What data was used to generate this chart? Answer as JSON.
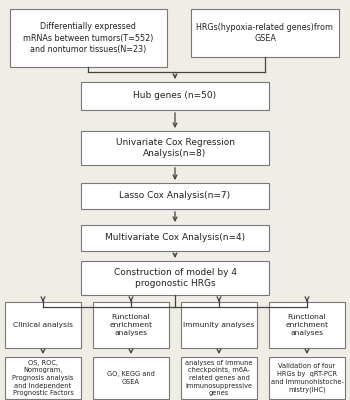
{
  "bg_color": "#f0ece6",
  "box_color": "#ffffff",
  "box_edge_color": "#777777",
  "arrow_color": "#444444",
  "text_color": "#222222",
  "top_left_box": "Differentially expressed\nmRNAs between tumors(T=552)\nand nontumor tissues(N=23)",
  "top_right_box": "HRGs(hypoxia-related genes)from\nGSEA",
  "box1": "Hub genes (n=50)",
  "box2": "Univariate Cox Regression\nAnalysis(n=8)",
  "box3": "Lasso Cox Analysis(n=7)",
  "box4": "Multivariate Cox Analysis(n=4)",
  "box5": "Construction of model by 4\nprogonostic HRGs",
  "bottom_titles": [
    "Clinical analysis",
    "Functional\nenrichment\nanalyses",
    "Immunity analyses",
    "Functional\nenrichment\nanalyses"
  ],
  "bottom_texts": [
    "OS, ROC,\nNomogram,\nPrognosis analysis\nand Independent\nPrognostic Factors",
    "GO, KEGG and\nGSEA",
    "analyses of immune\ncheckpoints, m6A-\nrelated genes and\nimmunosuppressive\ngenes",
    "Validation of four\nHRGs by  qRT-PCR\nand Immunohistoche-\nmistry(IHC)"
  ]
}
